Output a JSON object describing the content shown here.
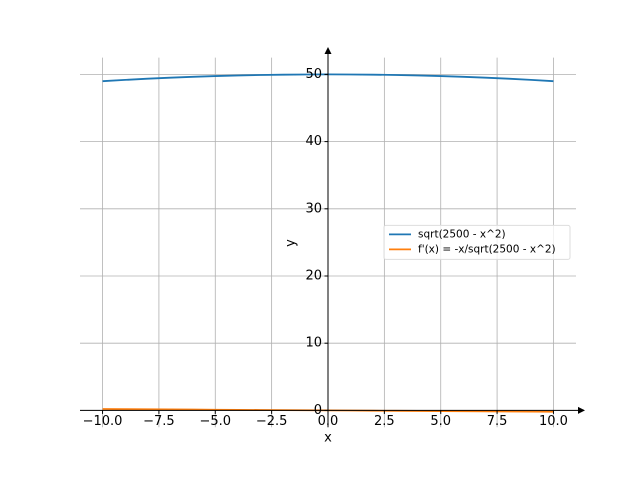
{
  "chart_data": {
    "type": "line",
    "x_label": "x",
    "y_label": "y",
    "x": [
      -10,
      -9,
      -8,
      -7,
      -6,
      -5,
      -4,
      -3,
      -2,
      -1,
      0,
      1,
      2,
      3,
      4,
      5,
      6,
      7,
      8,
      9,
      10
    ],
    "series": [
      {
        "name": "sqrt(2500 - x^2)",
        "color": "#1f77b4",
        "values": [
          48.99,
          49.18,
          49.36,
          49.51,
          49.64,
          49.75,
          49.84,
          49.91,
          49.96,
          49.99,
          50,
          49.99,
          49.96,
          49.91,
          49.84,
          49.75,
          49.64,
          49.51,
          49.36,
          49.18,
          48.99
        ]
      },
      {
        "name": "f'(x) = -x/sqrt(2500 - x^2)",
        "color": "#ff7f0e",
        "values": [
          0.204,
          0.183,
          0.162,
          0.141,
          0.121,
          0.101,
          0.08,
          0.06,
          0.04,
          0.02,
          0,
          -0.02,
          -0.04,
          -0.06,
          -0.08,
          -0.101,
          -0.121,
          -0.141,
          -0.162,
          -0.183,
          -0.204
        ]
      }
    ],
    "xlim": [
      -11,
      11
    ],
    "ylim": [
      -2.5,
      52.5
    ],
    "xticks": [
      {
        "value": -10,
        "label": "−10.0"
      },
      {
        "value": -7.5,
        "label": "−7.5"
      },
      {
        "value": -5,
        "label": "−5.0"
      },
      {
        "value": -2.5,
        "label": "−2.5"
      },
      {
        "value": 0,
        "label": "0.0"
      },
      2.5,
      {
        "value": 5,
        "label": "5.0"
      },
      7.5,
      {
        "value": 10,
        "label": "10.0"
      }
    ],
    "yticks": [
      0,
      10,
      20,
      30,
      40,
      50
    ],
    "grid": true,
    "legend": "center right"
  }
}
